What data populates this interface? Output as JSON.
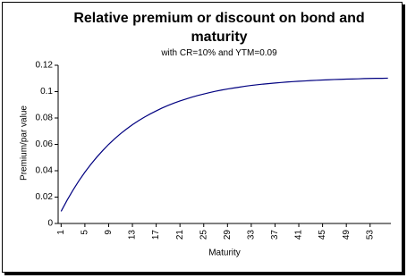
{
  "chart_data": {
    "type": "line",
    "title": "Relative premium or discount on bond and maturity",
    "subtitle": "with CR=10% and YTM=0.09",
    "x_label": "Maturity",
    "y_label": "Premium/par value",
    "categories": [
      1,
      null,
      null,
      null,
      5,
      null,
      null,
      null,
      9,
      null,
      null,
      null,
      13,
      null,
      null,
      null,
      17,
      null,
      null,
      null,
      21,
      null,
      null,
      null,
      25,
      null,
      null,
      null,
      29,
      null,
      null,
      null,
      33,
      null,
      null,
      null,
      37,
      null,
      null,
      null,
      41,
      null,
      null,
      null,
      45,
      null,
      null,
      null,
      49,
      null,
      null,
      null,
      53,
      null,
      null,
      null
    ],
    "series": [
      {
        "name": "Premium/par value",
        "color": "#000080",
        "values": [
          0.0092,
          0.0176,
          0.0253,
          0.0324,
          0.0389,
          0.0448,
          0.0503,
          0.0553,
          0.06,
          0.0642,
          0.0681,
          0.0716,
          0.0749,
          0.0779,
          0.0806,
          0.0831,
          0.0854,
          0.0876,
          0.0895,
          0.0913,
          0.0929,
          0.0944,
          0.0958,
          0.0971,
          0.0982,
          0.0993,
          0.1003,
          0.1012,
          0.102,
          0.1027,
          0.1034,
          0.1041,
          0.1047,
          0.1052,
          0.1057,
          0.1061,
          0.1065,
          0.1069,
          0.1073,
          0.1076,
          0.1079,
          0.1081,
          0.1084,
          0.1086,
          0.1088,
          0.109,
          0.1092,
          0.1093,
          0.1095,
          0.1096,
          0.1097,
          0.1099,
          0.11,
          0.1101,
          0.1101,
          0.1102
        ]
      }
    ],
    "ylim": [
      0,
      0.12
    ],
    "yticks": [
      0,
      0.02,
      0.04,
      0.06,
      0.08,
      0.1,
      0.12
    ],
    "grid": false
  }
}
